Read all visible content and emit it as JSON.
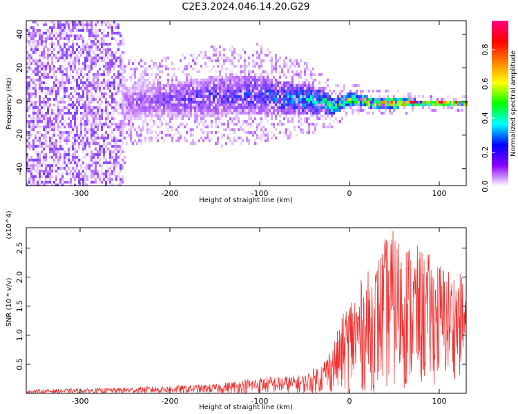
{
  "title": "C2E3.2024.046.14.20.G29",
  "chart_data": [
    {
      "type": "heatmap",
      "xlabel": "Height of straight line (km)",
      "ylabel": "Frequency (Hz)",
      "xlim": [
        -360,
        130
      ],
      "ylim": [
        -50,
        48
      ],
      "x_ticks": [
        -300,
        -200,
        -100,
        0,
        100
      ],
      "y_ticks": [
        -40,
        -20,
        0,
        20,
        40
      ],
      "colorbar": {
        "label": "Normalized spectral amplitude",
        "range": [
          0,
          0.97
        ],
        "ticks": [
          0.0,
          0.2,
          0.4,
          0.6,
          0.8
        ],
        "colormap": [
          "#ffffff",
          "#8a00ff",
          "#0000ff",
          "#00ffff",
          "#00ff00",
          "#ffff00",
          "#ff8000",
          "#ff0000",
          "#ff0080"
        ]
      },
      "ridge": {
        "x": [
          -360,
          -260,
          -250,
          -200,
          -150,
          -100,
          -80,
          -50,
          -30,
          -20,
          0,
          25,
          50,
          75,
          100,
          130
        ],
        "center_freq": [
          0,
          0,
          0,
          2,
          4,
          5,
          3,
          2,
          1,
          -2,
          2,
          0,
          0,
          0,
          0,
          0
        ],
        "half_width": [
          48,
          48,
          10,
          10,
          12,
          12,
          10,
          9,
          7,
          5,
          4,
          3,
          3,
          2,
          2,
          2
        ],
        "peak_amplitude": [
          0.05,
          0.05,
          0.15,
          0.2,
          0.22,
          0.25,
          0.3,
          0.35,
          0.45,
          0.5,
          0.6,
          0.7,
          0.8,
          0.85,
          0.9,
          0.9
        ]
      }
    },
    {
      "type": "line",
      "xlabel": "Height of straight line (km)",
      "ylabel": "SNR (10 * v/v)",
      "y_multiplier": "(x10^4)",
      "xlim": [
        -360,
        130
      ],
      "ylim": [
        0,
        28500
      ],
      "x_ticks": [
        -300,
        -200,
        -100,
        0,
        100
      ],
      "y_ticks": [
        5000,
        10000,
        15000,
        20000,
        25000
      ],
      "y_tick_labels": [
        "0.5",
        "1.0",
        "1.5",
        "2.0",
        "2.5"
      ],
      "series": [
        {
          "color": "#f03030",
          "envelope_x": [
            -360,
            -250,
            -150,
            -100,
            -50,
            -30,
            -15,
            0,
            25,
            45,
            60,
            80,
            100,
            130
          ],
          "envelope_max": [
            600,
            1000,
            1600,
            2800,
            3200,
            5500,
            10000,
            17000,
            22000,
            28500,
            27000,
            25000,
            23000,
            20000
          ],
          "envelope_min": [
            0,
            0,
            0,
            0,
            0,
            0,
            0,
            0,
            0,
            300,
            500,
            800,
            1500,
            3000
          ]
        }
      ]
    }
  ]
}
